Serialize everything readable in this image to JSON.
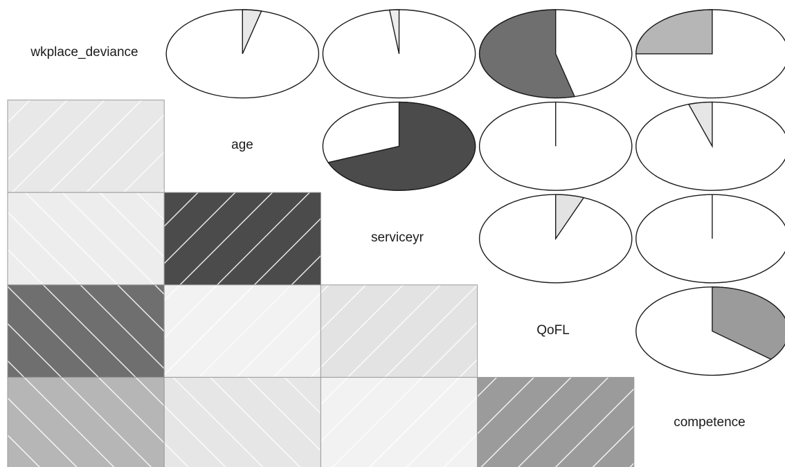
{
  "chart_data": {
    "type": "heatmap",
    "subtype": "correlogram",
    "variables": [
      "wkplace_deviance",
      "age",
      "serviceyr",
      "QoFL",
      "competence"
    ],
    "upper_panel": "pie",
    "lower_panel": "shade",
    "diagonal": "variable names",
    "color_scale": "grayscale, darker = stronger correlation",
    "positive_hatch": "lines rising to the right",
    "negative_hatch": "lines falling to the right",
    "correlations": [
      {
        "row": "age",
        "col": "wkplace_deviance",
        "r": 0.04
      },
      {
        "row": "serviceyr",
        "col": "wkplace_deviance",
        "r": -0.02
      },
      {
        "row": "QoFL",
        "col": "wkplace_deviance",
        "r": -0.54
      },
      {
        "row": "competence",
        "col": "wkplace_deviance",
        "r": -0.25
      },
      {
        "row": "serviceyr",
        "col": "age",
        "r": 0.69
      },
      {
        "row": "QoFL",
        "col": "age",
        "r": 0.0
      },
      {
        "row": "competence",
        "col": "age",
        "r": -0.05
      },
      {
        "row": "QoFL",
        "col": "serviceyr",
        "r": 0.06
      },
      {
        "row": "competence",
        "col": "serviceyr",
        "r": 0.0
      },
      {
        "row": "competence",
        "col": "QoFL",
        "r": 0.36
      }
    ]
  }
}
